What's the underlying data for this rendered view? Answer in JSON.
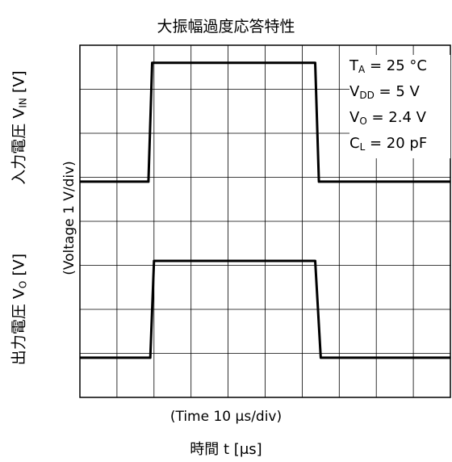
{
  "chart_data": {
    "type": "line",
    "title": "大振幅過度応答特性",
    "xlabel": "時間 t [μs]",
    "xscale_label": "(Time 10 μs/div)",
    "ylabel_in": {
      "prefix": "入力電圧 V",
      "sub": "IN",
      "suffix": " [V]"
    },
    "ylabel_out": {
      "prefix": "出力電圧 V",
      "sub": "O",
      "suffix": " [V]"
    },
    "yscale_label": "(Voltage 1 V/div)",
    "x_divisions": 10,
    "y_divisions": 8,
    "x_range": [
      0,
      100
    ],
    "series": [
      {
        "x": [
          0,
          18.5,
          19.5,
          63.5,
          64.5,
          100
        ],
        "y": [
          4.9,
          4.9,
          7.6,
          7.6,
          4.9,
          4.9
        ]
      },
      {
        "x": [
          0,
          19,
          20,
          63.5,
          65,
          100
        ],
        "y": [
          0.9,
          0.9,
          3.1,
          3.1,
          0.9,
          0.9
        ]
      }
    ],
    "conditions": [
      {
        "prefix": "T",
        "sub": "A",
        "suffix": " = 25 °C"
      },
      {
        "prefix": "V",
        "sub": "DD",
        "suffix": " = 5 V"
      },
      {
        "prefix": "V",
        "sub": "O",
        "suffix": " = 2.4 V"
      },
      {
        "prefix": "C",
        "sub": "L",
        "suffix": " = 20 pF"
      }
    ]
  }
}
